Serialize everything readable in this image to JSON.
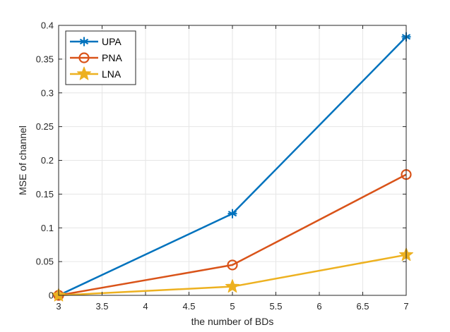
{
  "chart_data": {
    "type": "line",
    "title": "",
    "xlabel": "the number of BDs",
    "ylabel": "MSE of channel",
    "xlim": [
      3,
      7
    ],
    "ylim": [
      0,
      0.4
    ],
    "xticks": [
      3,
      3.5,
      4,
      4.5,
      5,
      5.5,
      6,
      6.5,
      7
    ],
    "xtick_labels": [
      "3",
      "3.5",
      "4",
      "4.5",
      "5",
      "5.5",
      "6",
      "6.5",
      "7"
    ],
    "yticks": [
      0,
      0.05,
      0.1,
      0.15,
      0.2,
      0.25,
      0.3,
      0.35,
      0.4
    ],
    "ytick_labels": [
      "0",
      "0.05",
      "0.1",
      "0.15",
      "0.2",
      "0.25",
      "0.3",
      "0.35",
      "0.4"
    ],
    "grid": true,
    "legend_position": "top-left",
    "x": [
      3,
      5,
      7
    ],
    "series": [
      {
        "name": "UPA",
        "values": [
          0.0,
          0.121,
          0.383
        ],
        "color": "#0072BD",
        "marker": "asterisk"
      },
      {
        "name": "PNA",
        "values": [
          0.0,
          0.045,
          0.179
        ],
        "color": "#D95319",
        "marker": "circle"
      },
      {
        "name": "LNA",
        "values": [
          0.0,
          0.013,
          0.06
        ],
        "color": "#EDB120",
        "marker": "star"
      }
    ]
  }
}
